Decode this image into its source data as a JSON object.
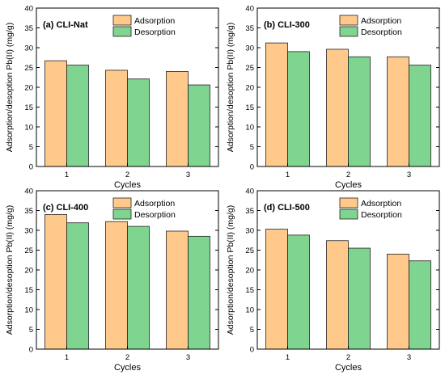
{
  "chart_data": [
    {
      "type": "bar",
      "title": "(a) CLI-Nat",
      "categories": [
        "1",
        "2",
        "3"
      ],
      "xlabel": "Cycles",
      "ylabel": "Adsorption/desoption Pb(II) (mg/g)",
      "ylim": [
        0,
        40
      ],
      "yticks": [
        0,
        5,
        10,
        15,
        20,
        25,
        30,
        35,
        40
      ],
      "legend_position": "top-center",
      "series": [
        {
          "name": "Adsorption",
          "values": [
            26.7,
            24.3,
            24.0
          ],
          "color": "#ffc98b"
        },
        {
          "name": "Desorption",
          "values": [
            25.6,
            22.1,
            20.6
          ],
          "color": "#7fd48f"
        }
      ]
    },
    {
      "type": "bar",
      "title": "(b) CLI-300",
      "categories": [
        "1",
        "2",
        "3"
      ],
      "xlabel": "Cycles",
      "ylabel": "Adsorption/desoption Pb(II) (mg/g)",
      "ylim": [
        0,
        40
      ],
      "yticks": [
        0,
        5,
        10,
        15,
        20,
        25,
        30,
        35,
        40
      ],
      "legend_position": "top-right",
      "series": [
        {
          "name": "Adsorption",
          "values": [
            31.2,
            29.6,
            27.7
          ],
          "color": "#ffc98b"
        },
        {
          "name": "Desorption",
          "values": [
            29.0,
            27.7,
            25.6
          ],
          "color": "#7fd48f"
        }
      ]
    },
    {
      "type": "bar",
      "title": "(c) CLI-400",
      "categories": [
        "1",
        "2",
        "3"
      ],
      "xlabel": "Cycles",
      "ylabel": "Adsorption/desoption Pb(II) (mg/g)",
      "ylim": [
        0,
        40
      ],
      "yticks": [
        0,
        5,
        10,
        15,
        20,
        25,
        30,
        35,
        40
      ],
      "legend_position": "top-center",
      "series": [
        {
          "name": "Adsorption",
          "values": [
            34.0,
            32.2,
            29.8
          ],
          "color": "#ffc98b"
        },
        {
          "name": "Desorption",
          "values": [
            31.9,
            31.0,
            28.5
          ],
          "color": "#7fd48f"
        }
      ]
    },
    {
      "type": "bar",
      "title": "(d) CLI-500",
      "categories": [
        "1",
        "2",
        "3"
      ],
      "xlabel": "Cycles",
      "ylabel": "Adsorption/desoption Pb(II) (mg/g)",
      "ylim": [
        0,
        40
      ],
      "yticks": [
        0,
        5,
        10,
        15,
        20,
        25,
        30,
        35,
        40
      ],
      "legend_position": "top-right",
      "series": [
        {
          "name": "Adsorption",
          "values": [
            30.3,
            27.4,
            24.0
          ],
          "color": "#ffc98b"
        },
        {
          "name": "Desorption",
          "values": [
            28.8,
            25.5,
            22.3
          ],
          "color": "#7fd48f"
        }
      ]
    }
  ]
}
